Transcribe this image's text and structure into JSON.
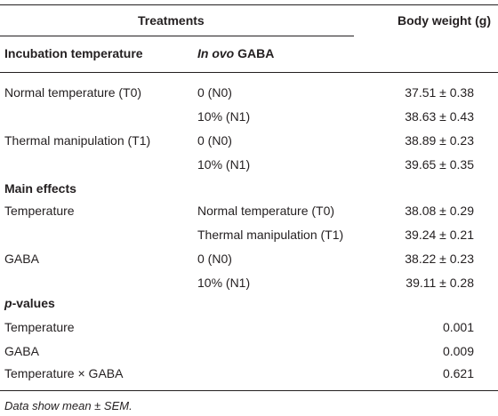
{
  "header": {
    "treatments": "Treatments",
    "body_weight": "Body weight (g)",
    "incubation_temperature": "Incubation temperature",
    "in_ovo_italic": "In ovo",
    "gaba_label": " GABA"
  },
  "rows": [
    {
      "c1": "Normal temperature (T0)",
      "c2": "0 (N0)",
      "c3": "37.51 ± 0.38"
    },
    {
      "c1": "",
      "c2": "10% (N1)",
      "c3": "38.63 ± 0.43"
    },
    {
      "c1": "Thermal manipulation (T1)",
      "c2": "0 (N0)",
      "c3": "38.89 ± 0.23"
    },
    {
      "c1": "",
      "c2": "10% (N1)",
      "c3": "39.65 ± 0.35"
    }
  ],
  "main_effects": {
    "title": "Main effects",
    "rows": [
      {
        "c1": "Temperature",
        "c2": "Normal temperature (T0)",
        "c3": "38.08 ± 0.29"
      },
      {
        "c1": "",
        "c2": "Thermal manipulation (T1)",
        "c3": "39.24 ± 0.21"
      },
      {
        "c1": "GABA",
        "c2": "0 (N0)",
        "c3": "38.22 ± 0.23"
      },
      {
        "c1": "",
        "c2": "10% (N1)",
        "c3": "39.11 ± 0.28"
      }
    ]
  },
  "p_values": {
    "title_p": "p",
    "title_rest": "-values",
    "rows": [
      {
        "c1": "Temperature",
        "c3": "0.001"
      },
      {
        "c1": "GABA",
        "c3": "0.009"
      },
      {
        "c1": "Temperature × GABA",
        "c3": "0.621"
      }
    ]
  },
  "footnote": "Data show mean ± SEM."
}
